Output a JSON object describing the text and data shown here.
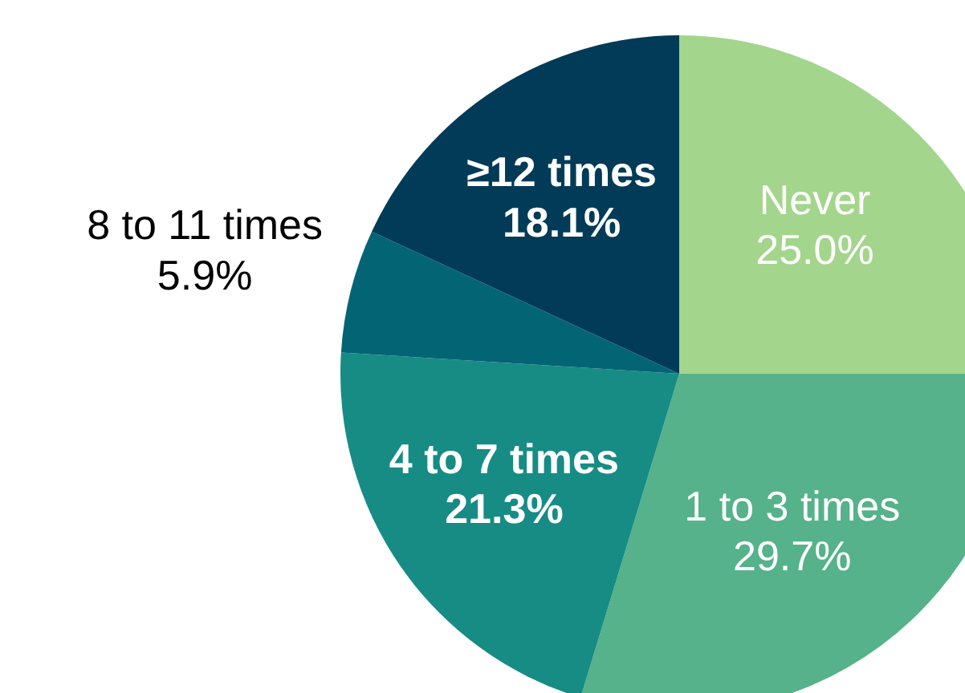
{
  "chart_data": {
    "type": "pie",
    "categories": [
      "Never",
      "1 to 3 times",
      "4 to 7 times",
      "8 to 11 times",
      "≥12 times"
    ],
    "values": [
      25.0,
      29.7,
      21.3,
      5.9,
      18.1
    ],
    "value_labels": [
      "25.0%",
      "29.7%",
      "21.3%",
      "5.9%",
      "18.1%"
    ],
    "colors": [
      "#a3d58c",
      "#55b28a",
      "#168c85",
      "#036574",
      "#023b57"
    ],
    "legend": false
  }
}
